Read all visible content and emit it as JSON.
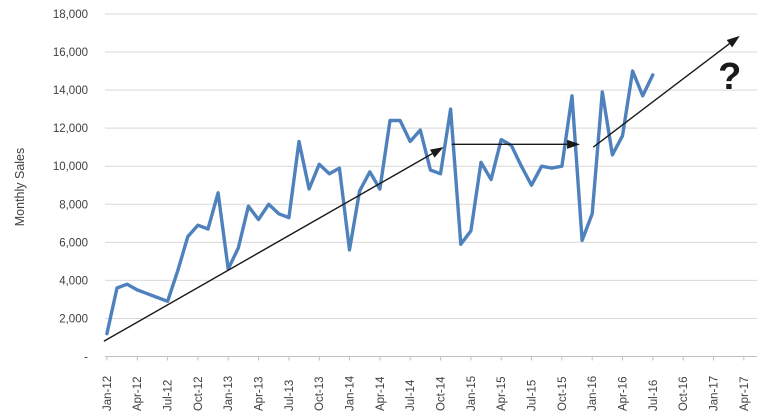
{
  "chart_data": {
    "type": "line",
    "ylabel": "Monthly Sales",
    "ylim": [
      0,
      18000
    ],
    "y_step": 2000,
    "y_tick_labels": [
      "-",
      "2,000",
      "4,000",
      "6,000",
      "8,000",
      "10,000",
      "12,000",
      "14,000",
      "16,000",
      "18,000"
    ],
    "x_tick_labels": [
      "Jan-12",
      "Apr-12",
      "Jul-12",
      "Oct-12",
      "Jan-13",
      "Apr-13",
      "Jul-13",
      "Oct-13",
      "Jan-14",
      "Apr-14",
      "Jul-14",
      "Oct-14",
      "Jan-15",
      "Apr-15",
      "Jul-15",
      "Oct-15",
      "Jan-16",
      "Apr-16",
      "Jul-16",
      "Oct-16",
      "Jan-17",
      "Apr-17"
    ],
    "x_tick_month_step": 3,
    "grid": "horizontal",
    "legend": "none",
    "series": [
      {
        "name": "Monthly Sales",
        "color": "#4f81bd",
        "start_month": "Jan-12",
        "values": [
          1200,
          3600,
          3800,
          3500,
          3300,
          3100,
          2900,
          4500,
          6300,
          6900,
          6700,
          8600,
          4600,
          5700,
          7900,
          7200,
          8000,
          7500,
          7300,
          11300,
          8800,
          10100,
          9600,
          9900,
          5600,
          8700,
          9700,
          8800,
          12400,
          12400,
          11300,
          11900,
          9800,
          9600,
          13000,
          5900,
          6600,
          10200,
          9300,
          11400,
          11100,
          10000,
          9000,
          10000,
          9900,
          10000,
          13700,
          6100,
          7500,
          13900,
          10600,
          11600,
          15000,
          13700,
          14800
        ]
      }
    ],
    "annotations": {
      "arrow_color": "#1a1a1a",
      "arrows": [
        {
          "name": "trend-arrow-past",
          "x1_month": -0.3,
          "y1": 800,
          "x2_month": 33.3,
          "y2": 11000
        },
        {
          "name": "flat-arrow-plateau",
          "x1_month": 34.1,
          "y1": 11150,
          "x2_month": 46.8,
          "y2": 11150
        },
        {
          "name": "trend-arrow-future",
          "x1_month": 48.1,
          "y1": 11000,
          "x2_month": 62.6,
          "y2": 16850
        }
      ],
      "question_mark": {
        "text": "?",
        "x_month": 61.6,
        "y_value": 14800
      }
    },
    "colors": {
      "line": "#4f81bd",
      "gridline": "#d9d9d9",
      "axis": "#bfbfbf",
      "tick_text": "#404040",
      "annotation": "#1a1a1a"
    }
  }
}
